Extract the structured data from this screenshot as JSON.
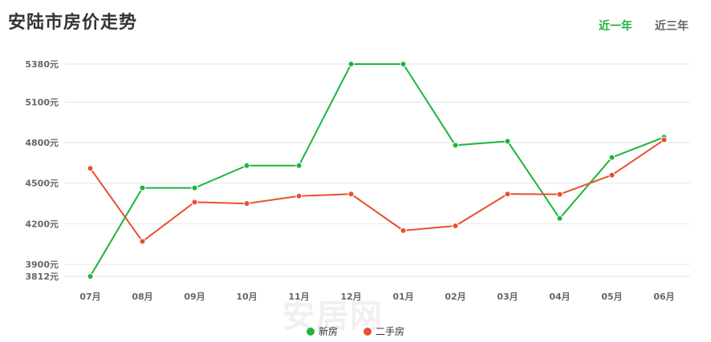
{
  "title": "安陆市房价走势",
  "tabs": [
    {
      "label": "近一年",
      "active": true
    },
    {
      "label": "近三年",
      "active": false
    }
  ],
  "watermark": "安居网",
  "chart_data": {
    "type": "line",
    "categories": [
      "07月",
      "08月",
      "09月",
      "10月",
      "11月",
      "12月",
      "01月",
      "02月",
      "03月",
      "04月",
      "05月",
      "06月"
    ],
    "y_ticks": [
      {
        "value": 5380,
        "label": "5380元"
      },
      {
        "value": 5100,
        "label": "5100元"
      },
      {
        "value": 4800,
        "label": "4800元"
      },
      {
        "value": 4500,
        "label": "4500元"
      },
      {
        "value": 4200,
        "label": "4200元"
      },
      {
        "value": 3900,
        "label": "3900元"
      },
      {
        "value": 3812,
        "label": "3812元"
      }
    ],
    "ylim": [
      3812,
      5380
    ],
    "grid": true,
    "legend_position": "bottom",
    "series": [
      {
        "name": "新房",
        "color": "#1db53a",
        "values": [
          3812,
          4465,
          4465,
          4630,
          4630,
          5380,
          5380,
          4780,
          4810,
          4240,
          4690,
          4840
        ]
      },
      {
        "name": "二手房",
        "color": "#e8502e",
        "values": [
          4610,
          4070,
          4360,
          4350,
          4405,
          4420,
          4150,
          4185,
          4420,
          4418,
          4560,
          4820
        ]
      }
    ]
  }
}
